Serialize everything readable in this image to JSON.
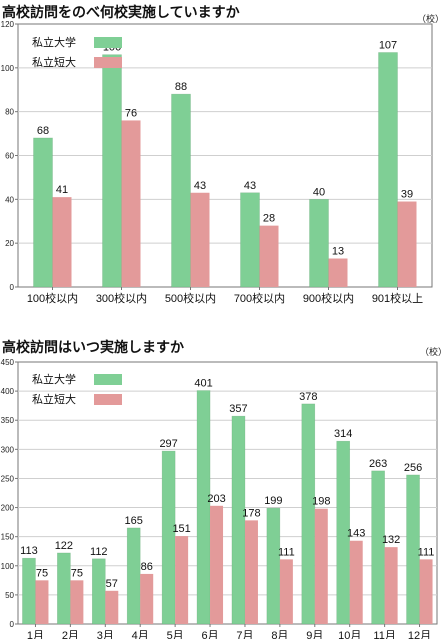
{
  "chart_data": [
    {
      "type": "bar",
      "title": "高校訪問をのべ何校実施していますか",
      "unit": "（校）",
      "categories": [
        "100校以内",
        "300校以内",
        "500校以内",
        "700校以内",
        "900校以内",
        "901校以上"
      ],
      "series": [
        {
          "name": "私立大学",
          "color": "#7fcf95",
          "values": [
            68,
            106,
            88,
            43,
            40,
            107
          ]
        },
        {
          "name": "私立短大",
          "color": "#e39a9a",
          "values": [
            41,
            76,
            43,
            28,
            13,
            39
          ]
        }
      ],
      "ylim": [
        0,
        120
      ],
      "yticks": [
        0,
        20,
        40,
        60,
        80,
        100,
        120
      ],
      "grid": true,
      "legend": "top-left"
    },
    {
      "type": "bar",
      "title": "高校訪問はいつ実施しますか",
      "unit": "（校）",
      "categories": [
        "1月",
        "2月",
        "3月",
        "4月",
        "5月",
        "6月",
        "7月",
        "8月",
        "9月",
        "10月",
        "11月",
        "12月"
      ],
      "series": [
        {
          "name": "私立大学",
          "color": "#7fcf95",
          "values": [
            113,
            122,
            112,
            165,
            297,
            401,
            357,
            199,
            378,
            314,
            263,
            256
          ]
        },
        {
          "name": "私立短大",
          "color": "#e39a9a",
          "values": [
            75,
            75,
            57,
            86,
            151,
            203,
            178,
            111,
            198,
            143,
            132,
            111
          ]
        }
      ],
      "ylim": [
        0,
        450
      ],
      "yticks": [
        0,
        50,
        100,
        150,
        200,
        250,
        300,
        350,
        400,
        450
      ],
      "grid": true,
      "legend": "top-left"
    }
  ]
}
